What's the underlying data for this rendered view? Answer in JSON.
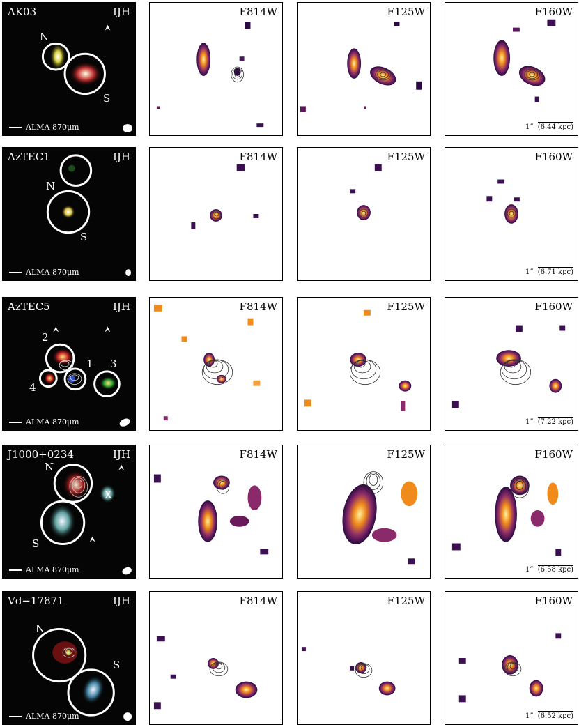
{
  "common": {
    "rgb_label": "IJH",
    "alma_label": "ALMA 870μm",
    "arcsec_label": "1”",
    "bands": [
      "F814W",
      "F125W",
      "F160W"
    ]
  },
  "rows": [
    {
      "name": "AK03",
      "components": [
        "N",
        "S"
      ],
      "kpc": "(6.44 kpc)"
    },
    {
      "name": "AzTEC1",
      "components": [
        "N",
        "S"
      ],
      "kpc": "(6.71 kpc)"
    },
    {
      "name": "AzTEC5",
      "components": [
        "1",
        "2",
        "3",
        "4"
      ],
      "kpc": "(7.22 kpc)"
    },
    {
      "name": "J1000+0234",
      "components": [
        "N",
        "S",
        "X"
      ],
      "kpc": "(6.58 kpc)"
    },
    {
      "name": "Vd−17871",
      "components": [
        "N",
        "S"
      ],
      "kpc": "(6.52 kpc)"
    }
  ],
  "colors": {
    "blob_core": "#fff2a0",
    "blob_mid": "#f08a1a",
    "blob_outer": "#7a2a6a",
    "blob_edge": "#2a0a40"
  }
}
